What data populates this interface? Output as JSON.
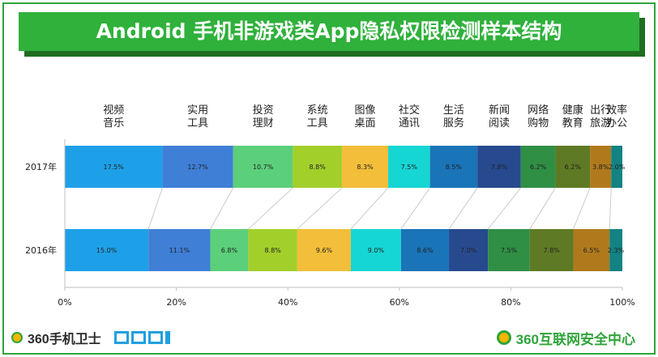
{
  "title": "Android 手机非游戏类App隐私权限检测样本结构",
  "footer": {
    "left_brand": "360手机卫士",
    "left_logo_text": "DCCI",
    "right_brand": "360互联网安全中心"
  },
  "chart_data": {
    "type": "bar",
    "orientation": "horizontal",
    "stacked": "percent",
    "categories": [
      "2017年",
      "2016年"
    ],
    "series": [
      {
        "name": "视频\n音乐",
        "values": [
          17.5,
          15.0
        ],
        "labels": [
          "17.5%",
          "15.0%"
        ],
        "color": "#1ea0e8"
      },
      {
        "name": "实用\n工具",
        "values": [
          12.7,
          11.1
        ],
        "labels": [
          "12.7%",
          "11.1%"
        ],
        "color": "#3f7fd6"
      },
      {
        "name": "投资\n理财",
        "values": [
          10.7,
          6.8
        ],
        "labels": [
          "10.7%",
          "6.8%"
        ],
        "color": "#5ccf7a"
      },
      {
        "name": "系统\n工具",
        "values": [
          8.8,
          8.8
        ],
        "labels": [
          "8.8%",
          "8.8%"
        ],
        "color": "#a3cf2b"
      },
      {
        "name": "图像\n桌面",
        "values": [
          8.3,
          9.6
        ],
        "labels": [
          "8.3%",
          "9.6%"
        ],
        "color": "#f3be3a"
      },
      {
        "name": "社交\n通讯",
        "values": [
          7.5,
          9.0
        ],
        "labels": [
          "7.5%",
          "9.0%"
        ],
        "color": "#16d6d4"
      },
      {
        "name": "生活\n服务",
        "values": [
          8.5,
          8.6
        ],
        "labels": [
          "8.5%",
          "8.6%"
        ],
        "color": "#1a74b8"
      },
      {
        "name": "新闻\n阅读",
        "values": [
          7.8,
          7.0
        ],
        "labels": [
          "7.8%",
          "7.0%"
        ],
        "color": "#274a8f"
      },
      {
        "name": "网络\n购物",
        "values": [
          6.2,
          7.5
        ],
        "labels": [
          "6.2%",
          "7.5%"
        ],
        "color": "#2f8f45"
      },
      {
        "name": "健康\n教育",
        "values": [
          6.2,
          7.8
        ],
        "labels": [
          "6.2%",
          "7.8%"
        ],
        "color": "#5f7a24"
      },
      {
        "name": "出行\n旅游",
        "values": [
          3.8,
          6.5
        ],
        "labels": [
          "3.8%",
          "6.5%"
        ],
        "color": "#b07a1c"
      },
      {
        "name": "效率\n办公",
        "values": [
          2.0,
          2.3
        ],
        "labels": [
          "2.0%",
          "2.3%"
        ],
        "color": "#128282"
      }
    ],
    "xlim": [
      0,
      100
    ],
    "xticks": [
      "0%",
      "20%",
      "40%",
      "60%",
      "80%",
      "100%"
    ],
    "grid": false,
    "legend": "top"
  }
}
